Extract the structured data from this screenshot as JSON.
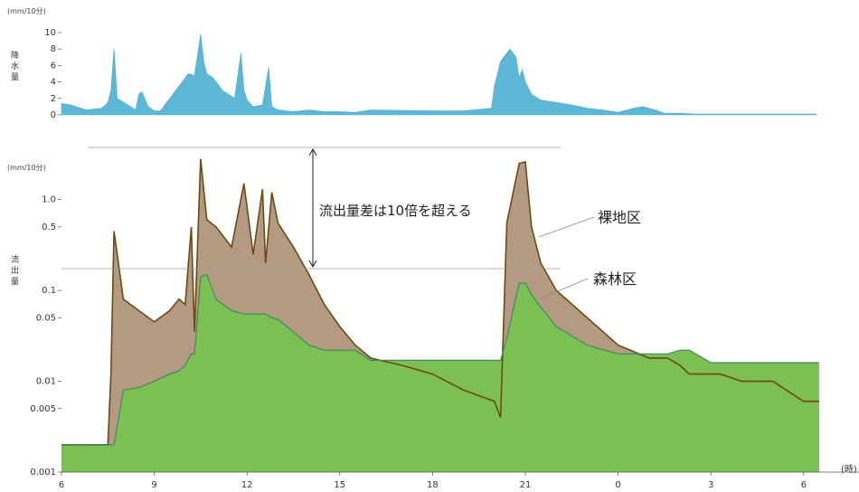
{
  "chart_data": [
    {
      "type": "area",
      "title": "",
      "ylabel_chars": [
        "降",
        "水",
        "量"
      ],
      "unit": "(mm/10分)",
      "ylim": [
        0,
        10
      ],
      "yticks": [
        "0",
        "2",
        "4",
        "6",
        "8",
        "10"
      ],
      "color": "#5db8d8",
      "x": [
        6.0,
        6.3,
        6.8,
        7.3,
        7.5,
        7.6,
        7.7,
        7.8,
        8.4,
        8.5,
        8.6,
        8.8,
        9.0,
        9.2,
        9.9,
        10.1,
        10.3,
        10.5,
        10.6,
        10.7,
        10.9,
        11.2,
        11.6,
        11.8,
        11.9,
        12.0,
        12.2,
        12.5,
        12.7,
        12.8,
        13.0,
        13.5,
        14.0,
        14.5,
        15.0,
        15.5,
        16.0,
        18.0,
        19.0,
        19.9,
        20.0,
        20.2,
        20.5,
        20.7,
        20.8,
        20.9,
        21.0,
        21.2,
        21.5,
        22.0,
        22.5,
        23.0,
        23.5,
        24.0,
        24.5,
        24.8,
        25.2,
        25.5,
        26.0,
        26.5,
        27.0,
        28.0,
        29.0,
        30.0,
        30.4
      ],
      "series": [
        {
          "values": [
            1.4,
            1.2,
            0.6,
            0.8,
            1.5,
            3.0,
            8.0,
            2.0,
            0.6,
            2.5,
            2.8,
            1.0,
            0.5,
            0.5,
            4.0,
            5.0,
            4.8,
            9.8,
            6.5,
            5.0,
            4.5,
            3.0,
            2.0,
            7.5,
            3.0,
            1.8,
            1.0,
            1.2,
            5.8,
            1.0,
            0.6,
            0.4,
            0.6,
            0.4,
            0.4,
            0.3,
            0.6,
            0.5,
            0.5,
            0.8,
            3.5,
            6.5,
            8.0,
            7.0,
            4.5,
            5.5,
            4.0,
            2.5,
            1.8,
            1.5,
            1.2,
            0.8,
            0.6,
            0.3,
            0.8,
            1.0,
            0.6,
            0.2,
            0.2,
            0.1,
            0.1,
            0.1,
            0.1,
            0.1,
            0.1
          ]
        }
      ]
    },
    {
      "type": "area",
      "title": "",
      "ylabel_chars": [
        "流",
        "出",
        "量"
      ],
      "unit": "(mm/10分)",
      "scale": "log",
      "ylim": [
        0.001,
        3.5
      ],
      "yticks": [
        "0.001",
        "0.005",
        "0.01",
        "0.05",
        "0.1",
        "0.5",
        "1.0"
      ],
      "xlabel": "(時)",
      "xticks": [
        "6",
        "9",
        "12",
        "15",
        "18",
        "21",
        "0",
        "3",
        "6"
      ],
      "x": [
        6.0,
        7.5,
        7.6,
        7.7,
        8.0,
        8.5,
        9.0,
        9.5,
        9.8,
        10.0,
        10.2,
        10.3,
        10.5,
        10.7,
        11.0,
        11.5,
        11.9,
        12.2,
        12.5,
        12.6,
        12.8,
        13.0,
        13.5,
        14.0,
        14.5,
        15.0,
        15.5,
        16.0,
        17.0,
        18.0,
        19.0,
        20.0,
        20.2,
        20.4,
        20.8,
        21.0,
        21.2,
        21.5,
        22.0,
        23.0,
        24.0,
        25.0,
        25.3,
        25.6,
        26.0,
        26.3,
        27.0,
        27.3,
        28.0,
        29.0,
        30.0,
        30.5
      ],
      "series": [
        {
          "name": "裸地区",
          "color": "#b49a82",
          "line_color": "#6b4a12",
          "values": [
            0.002,
            0.002,
            0.012,
            0.45,
            0.08,
            0.06,
            0.045,
            0.06,
            0.08,
            0.07,
            0.5,
            0.035,
            2.8,
            0.6,
            0.5,
            0.3,
            1.5,
            0.25,
            1.3,
            0.2,
            1.2,
            0.55,
            0.3,
            0.15,
            0.07,
            0.04,
            0.025,
            0.018,
            0.015,
            0.012,
            0.008,
            0.006,
            0.004,
            0.55,
            2.5,
            2.6,
            0.5,
            0.2,
            0.1,
            0.05,
            0.025,
            0.018,
            0.018,
            0.018,
            0.015,
            0.012,
            0.012,
            0.012,
            0.01,
            0.01,
            0.006,
            0.006
          ]
        },
        {
          "name": "森林区",
          "color": "#7cbf52",
          "line_color": "#3d8a62",
          "values": [
            0.002,
            0.002,
            0.002,
            0.002,
            0.008,
            0.0085,
            0.01,
            0.012,
            0.013,
            0.015,
            0.02,
            0.02,
            0.14,
            0.15,
            0.08,
            0.06,
            0.055,
            0.055,
            0.055,
            0.055,
            0.05,
            0.048,
            0.035,
            0.025,
            0.022,
            0.022,
            0.022,
            0.017,
            0.017,
            0.017,
            0.017,
            0.017,
            0.017,
            0.03,
            0.12,
            0.12,
            0.09,
            0.065,
            0.04,
            0.025,
            0.02,
            0.02,
            0.02,
            0.02,
            0.022,
            0.022,
            0.016,
            0.016,
            0.016,
            0.016,
            0.016,
            0.016
          ]
        }
      ],
      "annotation": "流出量差は10倍を超える"
    }
  ]
}
